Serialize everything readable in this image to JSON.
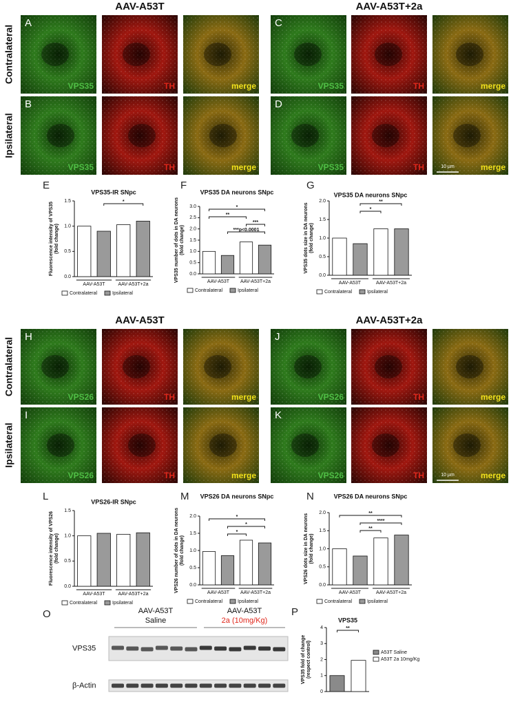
{
  "micrographs": [
    {
      "headers": [
        "AAV-A53T",
        "AAV-A53T+2a"
      ],
      "row_labels": [
        "Contralateral",
        "Ipsilateral"
      ],
      "panels": [
        {
          "letter": "A",
          "channels": [
            "VPS35",
            "TH",
            "merge"
          ]
        },
        {
          "letter": "C",
          "channels": [
            "VPS35",
            "TH",
            "merge"
          ]
        },
        {
          "letter": "B",
          "channels": [
            "VPS35",
            "TH",
            "merge"
          ]
        },
        {
          "letter": "D",
          "channels": [
            "VPS35",
            "TH",
            "merge"
          ]
        }
      ],
      "scale_bar": "10 µm"
    },
    {
      "headers": [
        "AAV-A53T",
        "AAV-A53T+2a"
      ],
      "row_labels": [
        "Contralateral",
        "Ipsilateral"
      ],
      "panels": [
        {
          "letter": "H",
          "channels": [
            "VPS26",
            "TH",
            "merge"
          ]
        },
        {
          "letter": "J",
          "channels": [
            "VPS26",
            "TH",
            "merge"
          ]
        },
        {
          "letter": "I",
          "channels": [
            "VPS26",
            "TH",
            "merge"
          ]
        },
        {
          "letter": "K",
          "channels": [
            "VPS26",
            "TH",
            "merge"
          ]
        }
      ],
      "scale_bar": "10 µm"
    }
  ],
  "chart_data": [
    {
      "type": "bar",
      "panel": "E",
      "title": "VPS35-IR SNpc",
      "ylabel": [
        "Fluorescence intensity of VPS35",
        "(fold change)"
      ],
      "categories": [
        "AAV-A53T",
        "AAV-A53T+2a"
      ],
      "series": [
        {
          "name": "Contralateral",
          "color": "#ffffff",
          "values": [
            1.0,
            1.03
          ]
        },
        {
          "name": "Ipsilateral",
          "color": "#9a9a9a",
          "values": [
            0.9,
            1.1
          ]
        }
      ],
      "ylim": [
        0,
        1.5
      ],
      "yticks": [
        {
          "value": 0,
          "label": "0.0"
        },
        {
          "value": 0.5,
          "label": "0.5"
        },
        {
          "value": 1,
          "label": "1.0"
        },
        {
          "value": 1.5,
          "label": "1.5"
        }
      ],
      "annotations": [
        "*"
      ],
      "legend": "bottom"
    },
    {
      "type": "bar",
      "panel": "F",
      "title": "VPS35  DA neurons SNpc",
      "ylabel": [
        "VPS35 number of dots in DA neurons",
        "(fold change)"
      ],
      "categories": [
        "AAV-A53T",
        "AAV-A53T+2a"
      ],
      "series": [
        {
          "name": "Contralateral",
          "color": "#ffffff",
          "values": [
            1.0,
            1.42
          ]
        },
        {
          "name": "Ipsilateral",
          "color": "#9a9a9a",
          "values": [
            0.82,
            1.28
          ]
        }
      ],
      "ylim": [
        0,
        3
      ],
      "yticks": [
        {
          "value": 0,
          "label": "0.0"
        },
        {
          "value": 0.5,
          "label": "0.5"
        },
        {
          "value": 1,
          "label": "1.0"
        },
        {
          "value": 1.5,
          "label": "1.5"
        },
        {
          "value": 2,
          "label": "2.0"
        },
        {
          "value": 2.5,
          "label": "2.5"
        },
        {
          "value": 3,
          "label": "3.0"
        }
      ],
      "annotations": [
        "*",
        "**",
        "***",
        "***p<0.0001"
      ],
      "legend": "bottom"
    },
    {
      "type": "bar",
      "panel": "G",
      "title": "VPS35 DA neurons SNpc",
      "ylabel": [
        "VPS35 dots size in DA neurons",
        "(fold change)"
      ],
      "categories": [
        "AAV-A53T",
        "AAV-A53T+2a"
      ],
      "series": [
        {
          "name": "Contralateral",
          "color": "#ffffff",
          "values": [
            1.0,
            1.25
          ]
        },
        {
          "name": "Ipsilateral",
          "color": "#9a9a9a",
          "values": [
            0.85,
            1.25
          ]
        }
      ],
      "ylim": [
        0,
        2
      ],
      "yticks": [
        {
          "value": 0,
          "label": "0.0"
        },
        {
          "value": 0.5,
          "label": "0.5"
        },
        {
          "value": 1,
          "label": "1.0"
        },
        {
          "value": 1.5,
          "label": "1.5"
        },
        {
          "value": 2,
          "label": "2.0"
        }
      ],
      "annotations": [
        "**",
        "*"
      ],
      "legend": "bottom"
    },
    {
      "type": "bar",
      "panel": "L",
      "title": "VPS26-IR SNpc",
      "ylabel": [
        "Fluorescence intensity of VPS26",
        "(fold change)"
      ],
      "categories": [
        "AAV-A53T",
        "AAV-A53T+2a"
      ],
      "series": [
        {
          "name": "Contralateral",
          "color": "#ffffff",
          "values": [
            1.0,
            1.03
          ]
        },
        {
          "name": "Ipsilateral",
          "color": "#9a9a9a",
          "values": [
            1.05,
            1.06
          ]
        }
      ],
      "ylim": [
        0,
        1.5
      ],
      "yticks": [
        {
          "value": 0,
          "label": "0.0"
        },
        {
          "value": 0.5,
          "label": "0.5"
        },
        {
          "value": 1,
          "label": "1.0"
        },
        {
          "value": 1.5,
          "label": "1.5"
        }
      ],
      "legend": "bottom"
    },
    {
      "type": "bar",
      "panel": "M",
      "title": "VPS26 DA neurons SNpc",
      "ylabel": [
        "VPS26 number of dots in DA neurons",
        "(fold change)"
      ],
      "categories": [
        "AAV-A53T",
        "AAV-A53T+2a"
      ],
      "series": [
        {
          "name": "Contralateral",
          "color": "#ffffff",
          "values": [
            0.97,
            1.3
          ]
        },
        {
          "name": "Ipsilateral",
          "color": "#9a9a9a",
          "values": [
            0.85,
            1.22
          ]
        }
      ],
      "ylim": [
        0,
        2
      ],
      "yticks": [
        {
          "value": 0,
          "label": "0.0"
        },
        {
          "value": 0.5,
          "label": "0.5"
        },
        {
          "value": 1,
          "label": "1.0"
        },
        {
          "value": 1.5,
          "label": "1.5"
        },
        {
          "value": 2,
          "label": "2.0"
        }
      ],
      "annotations": [
        "*",
        "*",
        "*"
      ],
      "legend": "bottom"
    },
    {
      "type": "bar",
      "panel": "N",
      "title": "VPS26 DA neurons SNpc",
      "ylabel": [
        "VPS26 dots size in DA neurons",
        "(fold change)"
      ],
      "categories": [
        "AAV-A53T",
        "AAV-A53T+2a"
      ],
      "series": [
        {
          "name": "Contralateral",
          "color": "#ffffff",
          "values": [
            1.0,
            1.3
          ]
        },
        {
          "name": "Ipsilateral",
          "color": "#9a9a9a",
          "values": [
            0.8,
            1.38
          ]
        }
      ],
      "ylim": [
        0,
        2
      ],
      "yticks": [
        {
          "value": 0,
          "label": "0.0"
        },
        {
          "value": 0.5,
          "label": "0.5"
        },
        {
          "value": 1,
          "label": "1.0"
        },
        {
          "value": 1.5,
          "label": "1.5"
        },
        {
          "value": 2,
          "label": "2.0"
        }
      ],
      "annotations": [
        "**",
        "****",
        "**"
      ],
      "legend": "bottom"
    },
    {
      "type": "bar",
      "panel": "P",
      "title": "VPS35",
      "ylabel": [
        "VPS35 fold of change",
        "(respect control)"
      ],
      "categories": [
        null
      ],
      "series": [
        {
          "name": "A53T Saline",
          "color": "#8a8a8a",
          "values": [
            1.0
          ]
        },
        {
          "name": "A53T 2a 10mg/Kg",
          "color": "#ffffff",
          "values": [
            1.95
          ]
        }
      ],
      "ylim": [
        0,
        4
      ],
      "yticks": [
        0,
        1,
        2,
        3,
        4
      ],
      "annotations": [
        "**"
      ],
      "legend": "right"
    }
  ],
  "blot": {
    "letter": "O",
    "groups": [
      {
        "line1": "AAV-A53T",
        "line2": "Saline"
      },
      {
        "line1": "AAV-A53T",
        "line2": "2a (10mg/Kg)"
      }
    ],
    "rows": [
      "VPS35",
      "β-Actin"
    ]
  }
}
